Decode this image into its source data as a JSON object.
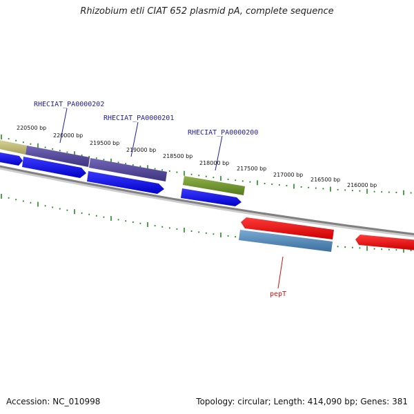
{
  "title": "Rhizobium etli CIAT 652 plasmid pA, complete sequence",
  "footer": {
    "accession": "Accession: NC_010998",
    "summary": "Topology: circular; Length: 414,090 bp; Genes: 381"
  },
  "tick_labels": [
    "220500 bp",
    "220000 bp",
    "219500 bp",
    "219000 bp",
    "218500 bp",
    "218000 bp",
    "217500 bp",
    "217000 bp",
    "216500 bp",
    "216000 bp"
  ],
  "gene_labels": [
    {
      "text": "RHECIAT_PA0000202",
      "color": "#1c1ca8"
    },
    {
      "text": "RHECIAT_PA0000201",
      "color": "#1c1ca8"
    },
    {
      "text": "RHECIAT_PA0000200",
      "color": "#1c1ca8"
    },
    {
      "text": "pepT",
      "color": "#cc1111"
    }
  ],
  "colors": {
    "backbone": "#888888",
    "tick": "#1f8a1f",
    "cds_forward": "#0000ee",
    "cds_reverse": "#ee0000",
    "gene_olive": "#b9b46e",
    "gene_purple": "#4f4394",
    "gene_green": "#6b8f2a",
    "gene_steelblue": "#4a84b8"
  }
}
